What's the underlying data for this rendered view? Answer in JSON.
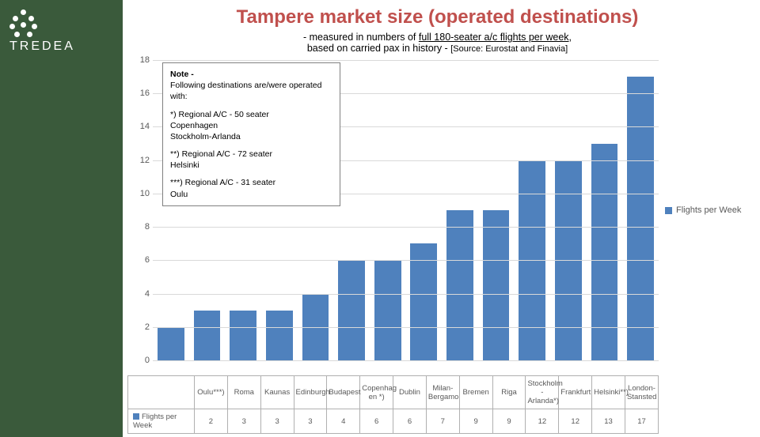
{
  "sidebar": {
    "bg_color": "#3a5a3b",
    "logo_text": "TREDEA",
    "logo_color": "#ffffff"
  },
  "title": {
    "text": "Tampere market size (operated destinations)",
    "color": "#c0504d",
    "fontsize": 24
  },
  "subtitle_prefix": "- measured in numbers of ",
  "subtitle_underline": "full 180-seater a/c flights per week",
  "subtitle_suffix": ",",
  "subtitle2_prefix": "based on carried pax in history - ",
  "subtitle2_source": "[Source: Eurostat and Finavia]",
  "note": {
    "header": "Note -",
    "intro": "Following destinations are/were operated with:",
    "block1_head": "*) Regional A/C - 50 seater",
    "block1_l1": "Copenhagen",
    "block1_l2": "Stockholm-Arlanda",
    "block2_head": "**) Regional A/C - 72 seater",
    "block2_l1": "Helsinki",
    "block3_head": "***) Regional A/C - 31 seater",
    "block3_l1": "Oulu"
  },
  "chart": {
    "type": "bar",
    "ylim": [
      0,
      18
    ],
    "ytick_step": 2,
    "yticks": [
      0,
      2,
      4,
      6,
      8,
      10,
      12,
      14,
      16,
      18
    ],
    "grid_color": "#d9d9d9",
    "bar_color": "#4f81bd",
    "background_color": "#ffffff",
    "categories": [
      "Oulu***)",
      "Roma",
      "Kaunas",
      "Edinburgh",
      "Budapest",
      "Copenhag\nen *)",
      "Dublin",
      "Milan-\nBergamo",
      "Bremen",
      "Riga",
      "Stockholm\n-Arlanda*)",
      "Frankfurt",
      "Helsinki**)",
      "London-\nStansted"
    ],
    "values": [
      2,
      3,
      3,
      3,
      4,
      6,
      6,
      7,
      9,
      9,
      12,
      12,
      13,
      17
    ],
    "series_name": "Flights per Week"
  },
  "legend": {
    "label": "Flights per Week",
    "color": "#4f81bd"
  },
  "table": {
    "row_label": "Flights per Week"
  }
}
